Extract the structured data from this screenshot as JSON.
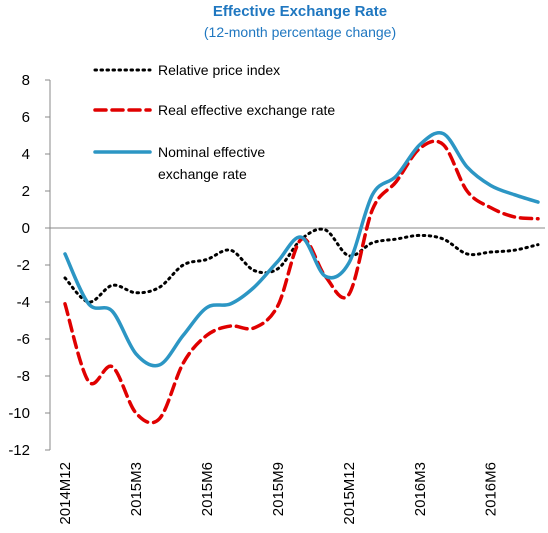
{
  "chart_data": {
    "type": "line",
    "title": "Effective Exchange Rate",
    "subtitle": "(12-month percentage change)",
    "categories": [
      "2014M12",
      null,
      null,
      "2015M3",
      null,
      null,
      "2015M6",
      null,
      null,
      "2015M9",
      null,
      null,
      "2015M12",
      null,
      null,
      "2016M3",
      null,
      null,
      "2016M6",
      null,
      null
    ],
    "series": [
      {
        "name": "Relative price index",
        "color": "#000000",
        "dash": "dotted",
        "values": [
          -2.7,
          -4.0,
          -3.1,
          -3.5,
          -3.2,
          -2.0,
          -1.7,
          -1.2,
          -2.3,
          -2.2,
          -0.6,
          -0.1,
          -1.5,
          -0.8,
          -0.6,
          -0.4,
          -0.6,
          -1.4,
          -1.3,
          -1.2,
          -0.9
        ]
      },
      {
        "name": "Real effective exchange rate",
        "color": "#e00000",
        "dash": "dashed",
        "values": [
          -4.1,
          -8.3,
          -7.5,
          -10.0,
          -10.3,
          -7.3,
          -5.8,
          -5.3,
          -5.4,
          -4.2,
          -0.6,
          -2.6,
          -3.6,
          1.0,
          2.5,
          4.3,
          4.5,
          2.0,
          1.1,
          0.6,
          0.5
        ]
      },
      {
        "name": "Nominal effective exchange rate",
        "color": "#2c96c4",
        "dash": "solid",
        "values": [
          -1.4,
          -4.1,
          -4.5,
          -6.8,
          -7.4,
          -5.8,
          -4.3,
          -4.1,
          -3.2,
          -1.8,
          -0.5,
          -2.6,
          -1.9,
          1.8,
          2.8,
          4.5,
          5.1,
          3.3,
          2.3,
          1.8,
          1.4
        ]
      }
    ],
    "ylim": [
      -12,
      8
    ],
    "yticks": [
      -12,
      -10,
      -8,
      -6,
      -4,
      -2,
      0,
      2,
      4,
      6,
      8
    ],
    "title_color": "#1f77c0",
    "legend": "top-left"
  }
}
